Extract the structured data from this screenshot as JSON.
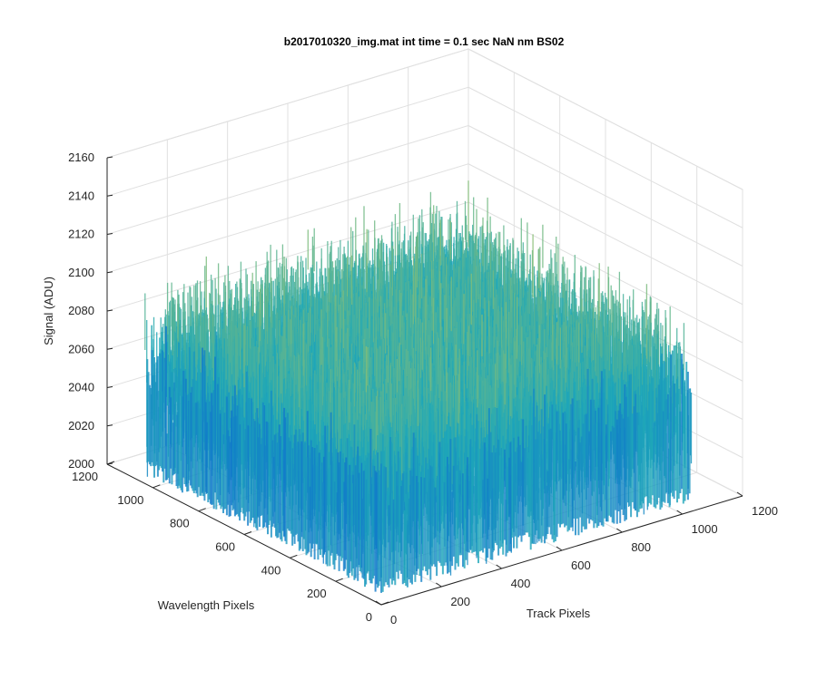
{
  "chart_data": {
    "type": "surface3d",
    "title": "b2017010320_img.mat int time = 0.1 sec  NaN nm BS02",
    "xlabel": "Track Pixels",
    "ylabel": "Wavelength Pixels",
    "zlabel": "Signal (ADU)",
    "xlim": [
      0,
      1200
    ],
    "ylim": [
      0,
      1200
    ],
    "zlim": [
      2000,
      2160
    ],
    "x_ticks": [
      "0",
      "200",
      "400",
      "600",
      "800",
      "1000",
      "1200"
    ],
    "y_ticks": [
      "0",
      "200",
      "400",
      "600",
      "800",
      "1000",
      "1200"
    ],
    "z_ticks": [
      "2000",
      "2020",
      "2040",
      "2060",
      "2080",
      "2100",
      "2120",
      "2140",
      "2160"
    ],
    "grid": true,
    "colormap": "parula",
    "colors": {
      "low": "#0a64d2",
      "mid": "#1fa8b8",
      "high": "#e6d23a",
      "axis": "#262626",
      "grid": "#e0e0e0"
    },
    "surface": {
      "x_extent": [
        0,
        1024
      ],
      "y_extent": [
        0,
        1024
      ],
      "mean_signal": 2075,
      "noise_range": [
        2005,
        2155
      ]
    }
  }
}
